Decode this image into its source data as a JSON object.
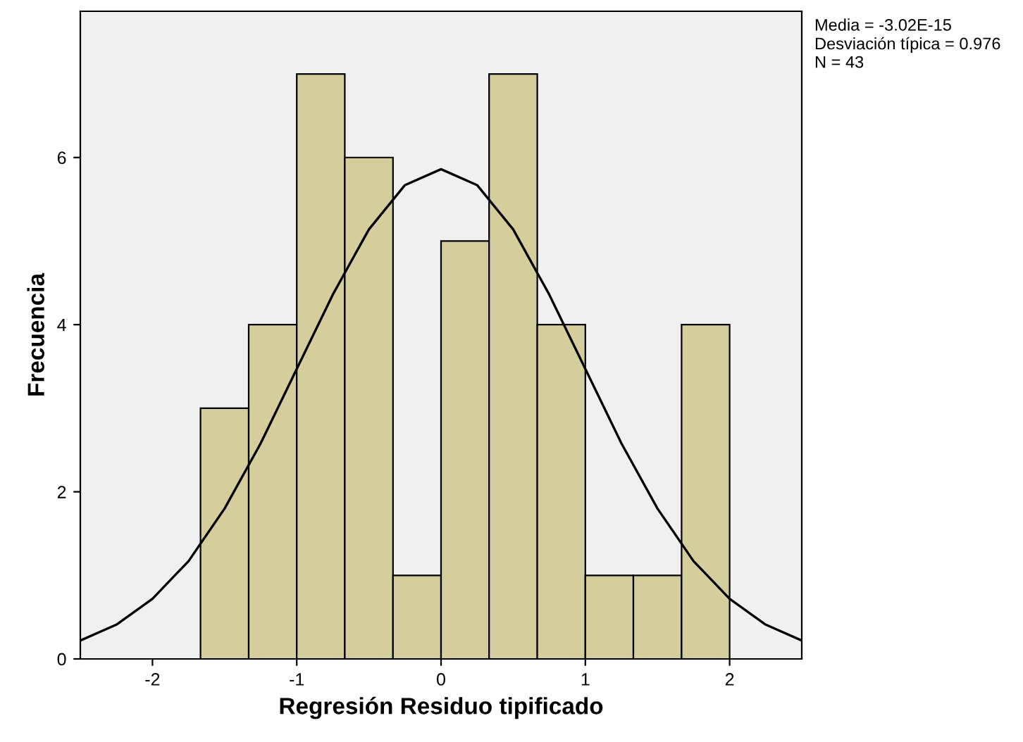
{
  "chart_data": {
    "type": "histogram",
    "xlabel": "Regresión Residuo tipificado",
    "ylabel": "Frecuencia",
    "annotations": [
      "Media = -3.02E-15",
      "Desviación típica = 0.976",
      "N = 43"
    ],
    "series": [
      {
        "color": "#d3ce9c",
        "bins": [
          -1.667,
          -1.333,
          -1,
          -0.667,
          -0.333,
          0,
          0.333,
          0.667,
          1,
          1.333,
          1.667,
          2
        ],
        "values": [
          3,
          4,
          7,
          6,
          1,
          5,
          7,
          4,
          1,
          1,
          4
        ]
      },
      {
        "type": "line",
        "color": "#000000",
        "x": [
          -2.5,
          -2.25,
          -2,
          -1.75,
          -1.5,
          -1.25,
          -1,
          -0.75,
          -0.5,
          -0.25,
          0,
          0.25,
          0.5,
          0.75,
          1,
          1.25,
          1.5,
          1.75,
          2,
          2.25,
          2.5
        ],
        "values": [
          0.22,
          0.41,
          0.72,
          1.17,
          1.8,
          2.58,
          3.47,
          4.36,
          5.14,
          5.67,
          5.86,
          5.67,
          5.14,
          4.36,
          3.47,
          2.58,
          1.8,
          1.17,
          0.72,
          0.41,
          0.22
        ]
      }
    ],
    "xlim": [
      -2.5,
      2.5
    ],
    "ylim": [
      0,
      7.75
    ],
    "xticks": [
      -2,
      -1,
      0,
      1,
      2
    ],
    "yticks": [
      0,
      2,
      4,
      6
    ],
    "grid": false,
    "legend": false
  }
}
